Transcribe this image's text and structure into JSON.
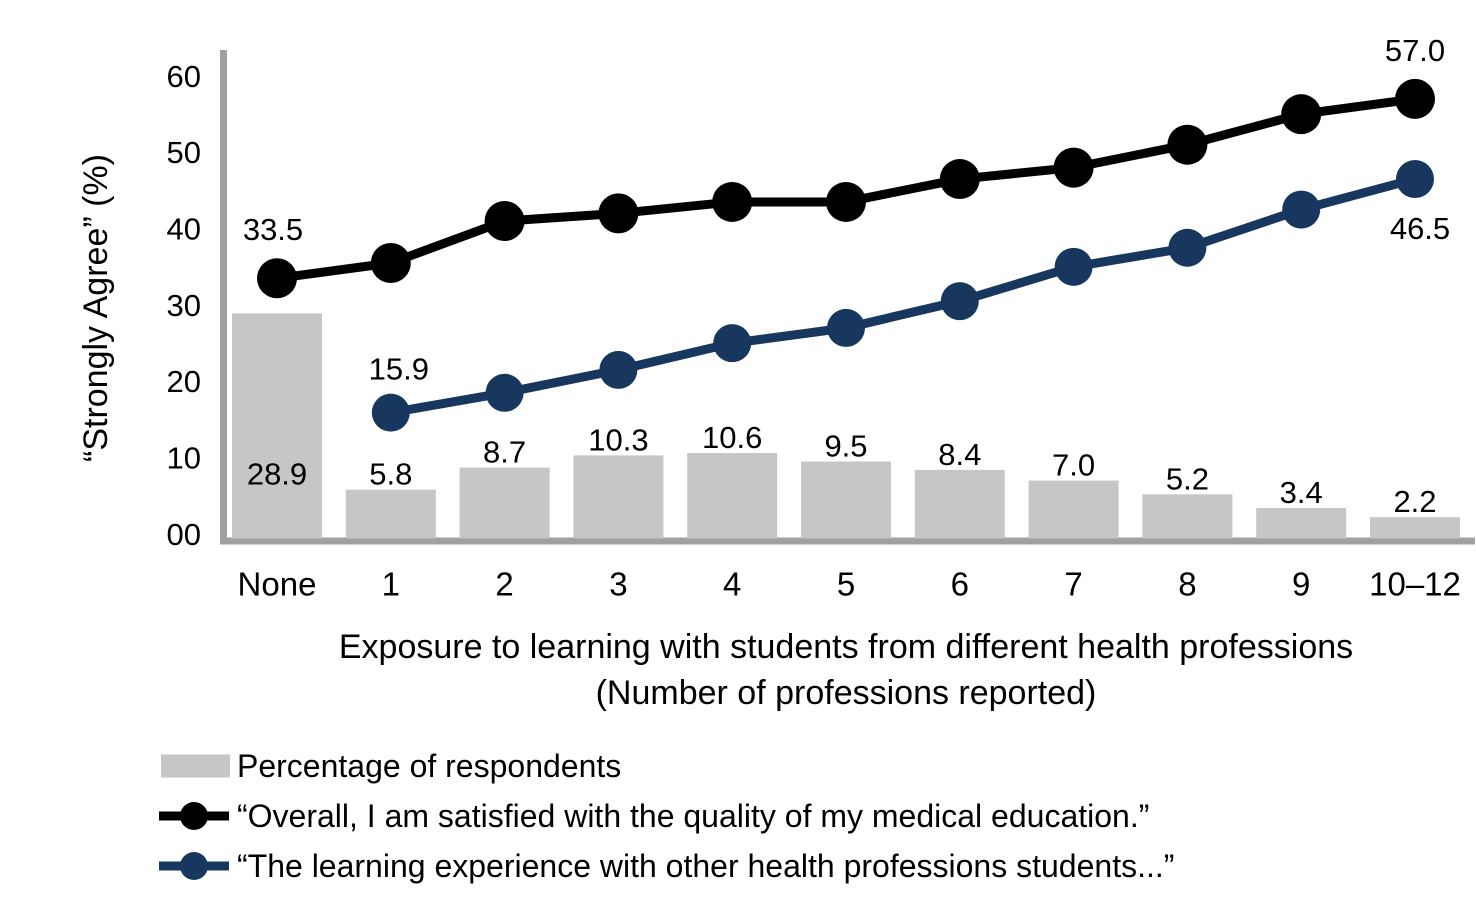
{
  "figure": {
    "y_axis_title": "“Strongly Agree” (%)",
    "x_axis_title_line1": "Exposure to learning with students from different health professions",
    "x_axis_title_line2": "(Number of professions reported)"
  },
  "legend": {
    "position": "bottom-left",
    "items": [
      {
        "marker": "bar",
        "label": "Percentage of respondents",
        "color": "#c6c6c6"
      },
      {
        "marker": "line",
        "label": "“Overall, I am satisfied with the quality of my medical education.”",
        "color": "#000000"
      },
      {
        "marker": "line",
        "label": "“The learning experience with other health professions students...”",
        "color": "#17375e"
      }
    ]
  },
  "chart_data": {
    "type": "combo-bar-line",
    "categories": [
      "None",
      "1",
      "2",
      "3",
      "4",
      "5",
      "6",
      "7",
      "8",
      "9",
      "10–12"
    ],
    "y_tick_labels": [
      "00",
      "10",
      "20",
      "30",
      "40",
      "50",
      "60"
    ],
    "y_tick_values": [
      0,
      10,
      20,
      30,
      40,
      50,
      60
    ],
    "ylim": [
      0,
      60
    ],
    "grid": "off",
    "xlabel": "Exposure to learning with students from different health professions (Number of professions reported)",
    "ylabel": "“Strongly Agree” (%)",
    "series": [
      {
        "name": "Percentage of respondents",
        "type": "bar",
        "color": "#c6c6c6",
        "values": [
          28.9,
          5.8,
          8.7,
          10.3,
          10.6,
          9.5,
          8.4,
          7.0,
          5.2,
          3.4,
          2.2
        ],
        "value_labels": [
          "28.9",
          "5.8",
          "8.7",
          "10.3",
          "10.6",
          "9.5",
          "8.4",
          "7.0",
          "5.2",
          "3.4",
          "2.2"
        ],
        "first_label_inside_bar": true
      },
      {
        "name": "“Overall, I am satisfied with the quality of my medical education.”",
        "type": "line",
        "color": "#000000",
        "values": [
          33.5,
          35.5,
          41.0,
          42.0,
          43.5,
          43.5,
          46.5,
          48.0,
          51.0,
          55.0,
          57.0
        ],
        "values_note": "endpoints labeled in figure; interior points estimated from pixel positions",
        "shown_point_labels": {
          "0": "33.5",
          "10": "57.0"
        }
      },
      {
        "name": "“The learning experience with other health professions students...”",
        "type": "line",
        "color": "#17375e",
        "values": [
          null,
          15.9,
          18.5,
          21.5,
          25.0,
          27.0,
          30.5,
          35.0,
          37.5,
          42.5,
          46.5
        ],
        "values_note": "endpoints labeled in figure; interior points estimated from pixel positions",
        "shown_point_labels": {
          "1": "15.9",
          "10": "46.5"
        }
      }
    ],
    "axis_color": "#a0a0a0"
  }
}
